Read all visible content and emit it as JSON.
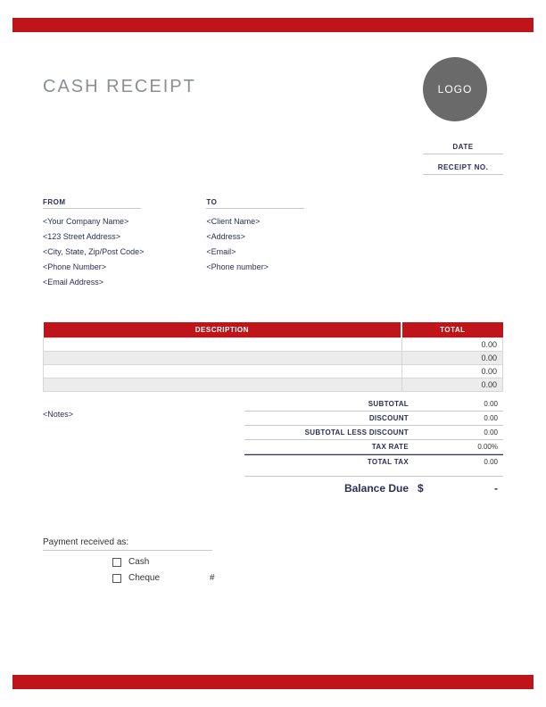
{
  "colors": {
    "accent": "#c0141b",
    "label": "#2a2f5c",
    "logo_bg": "#6a6a6a",
    "alt_row": "#ececec",
    "rule": "#c9c9c9",
    "background": "#ffffff"
  },
  "header": {
    "title": "CASH RECEIPT",
    "logo_text": "LOGO"
  },
  "meta": {
    "date_label": "DATE",
    "receipt_no_label": "RECEIPT NO."
  },
  "from": {
    "heading": "FROM",
    "lines": [
      "<Your Company Name>",
      "<123 Street Address>",
      "<City, State, Zip/Post Code>",
      "<Phone Number>",
      "<Email Address>"
    ]
  },
  "to": {
    "heading": "TO",
    "lines": [
      "<Client Name>",
      "<Address>",
      "<Email>",
      "<Phone number>"
    ]
  },
  "items": {
    "columns": [
      "DESCRIPTION",
      "TOTAL"
    ],
    "rows": [
      {
        "description": "",
        "total": "0.00"
      },
      {
        "description": "",
        "total": "0.00"
      },
      {
        "description": "",
        "total": "0.00"
      },
      {
        "description": "",
        "total": "0.00"
      }
    ]
  },
  "notes": "<Notes>",
  "totals": {
    "subtotal": {
      "label": "SUBTOTAL",
      "value": "0.00"
    },
    "discount": {
      "label": "DISCOUNT",
      "value": "0.00"
    },
    "subtotal_less": {
      "label": "SUBTOTAL LESS DISCOUNT",
      "value": "0.00"
    },
    "tax_rate": {
      "label": "TAX RATE",
      "value": "0.00%"
    },
    "total_tax": {
      "label": "TOTAL TAX",
      "value": "0.00"
    },
    "balance_due": {
      "label": "Balance Due",
      "currency": "$",
      "value": "-"
    }
  },
  "payment": {
    "heading": "Payment received as:",
    "cash_label": "Cash",
    "cheque_label": "Cheque",
    "hash": "#"
  }
}
